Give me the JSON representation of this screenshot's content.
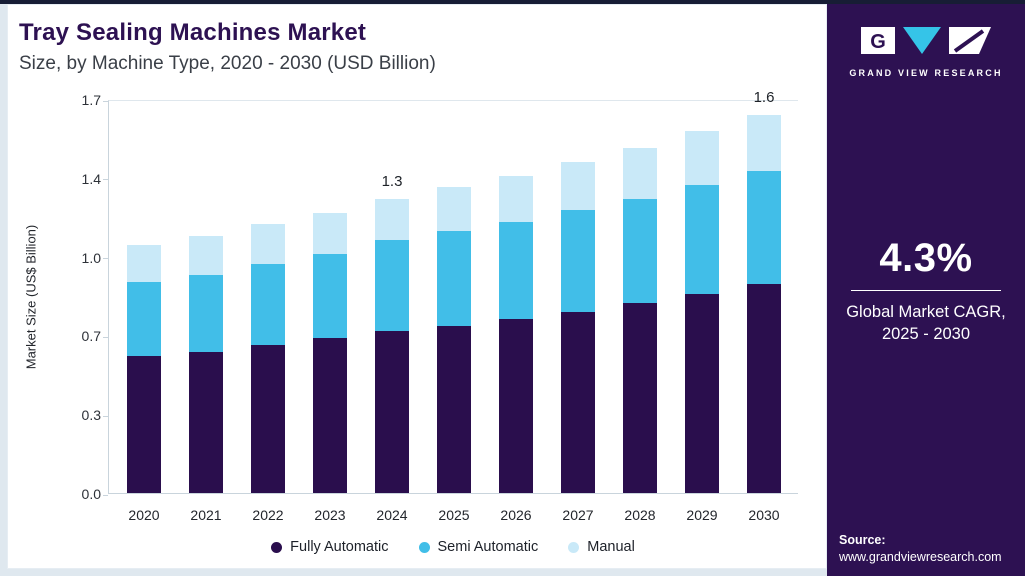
{
  "chart": {
    "title_line1": "Tray Sealing Machines Market",
    "title_line2": "Size, by Machine Type, 2020 - 2030 (USD Billion)",
    "ylabel": "Market Size (US$ Billion)"
  },
  "chart_data": {
    "type": "bar",
    "stacked": true,
    "title": "Tray Sealing Machines Market Size, by Machine Type, 2020 - 2030 (USD Billion)",
    "xlabel": "",
    "ylabel": "Market Size (US$ Billion)",
    "categories": [
      "2020",
      "2021",
      "2022",
      "2023",
      "2024",
      "2025",
      "2026",
      "2027",
      "2028",
      "2029",
      "2030"
    ],
    "series": [
      {
        "name": "Fully Automatic",
        "color": "#2a0e4d",
        "values": [
          0.59,
          0.61,
          0.64,
          0.67,
          0.7,
          0.72,
          0.75,
          0.78,
          0.82,
          0.86,
          0.9
        ]
      },
      {
        "name": "Semi Automatic",
        "color": "#41bee8",
        "values": [
          0.32,
          0.33,
          0.35,
          0.36,
          0.39,
          0.41,
          0.42,
          0.44,
          0.45,
          0.47,
          0.49
        ]
      },
      {
        "name": "Manual",
        "color": "#c9e9f8",
        "values": [
          0.16,
          0.17,
          0.17,
          0.18,
          0.18,
          0.19,
          0.2,
          0.21,
          0.22,
          0.23,
          0.24
        ]
      }
    ],
    "ylim": [
      0,
      1.7
    ],
    "ytick_labels": [
      "0.0",
      "0.3",
      "0.7",
      "1.0",
      "1.4",
      "1.7"
    ],
    "annotations": [
      {
        "category": "2024",
        "text": "1.3"
      },
      {
        "category": "2030",
        "text": "1.6"
      }
    ],
    "legend_position": "bottom",
    "grid": false
  },
  "sidebar": {
    "brand": "GRAND VIEW RESEARCH",
    "cagr_value": "4.3%",
    "cagr_label": "Global Market CAGR, 2025 - 2030",
    "source_label": "Source:",
    "source_url": "www.grandviewresearch.com"
  },
  "colors": {
    "accent_purple": "#2d1152",
    "accent_cyan": "#41bee8",
    "accent_lightblue": "#c9e9f8",
    "topbar": "#171d35"
  }
}
